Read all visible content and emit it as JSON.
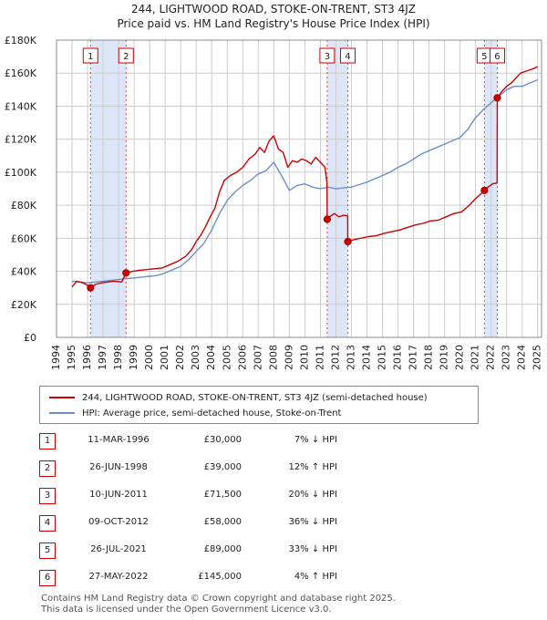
{
  "title_line1": "244, LIGHTWOOD ROAD, STOKE-ON-TRENT, ST3 4JZ",
  "title_line2": "Price paid vs. HM Land Registry's House Price Index (HPI)",
  "colors": {
    "price_line": "#cc0000",
    "hpi_line": "#6e8fc4",
    "shade": "#dde6f8",
    "grid": "#cccccc",
    "marker_box": "#cc0000"
  },
  "chart_data": {
    "type": "line",
    "xlabel": "",
    "ylabel": "",
    "xlim": [
      1994,
      2025.25
    ],
    "ylim": [
      0,
      180000
    ],
    "yticks": [
      0,
      20000,
      40000,
      60000,
      80000,
      100000,
      120000,
      140000,
      160000,
      180000
    ],
    "ytick_labels": [
      "£0",
      "£20K",
      "£40K",
      "£60K",
      "£80K",
      "£100K",
      "£120K",
      "£140K",
      "£160K",
      "£180K"
    ],
    "xticks": [
      "1994",
      "1995",
      "1996",
      "1997",
      "1998",
      "1999",
      "2000",
      "2001",
      "2002",
      "2003",
      "2004",
      "2005",
      "2006",
      "2007",
      "2008",
      "2009",
      "2010",
      "2011",
      "2012",
      "2013",
      "2014",
      "2015",
      "2016",
      "2017",
      "2018",
      "2019",
      "2020",
      "2021",
      "2022",
      "2023",
      "2024",
      "2025"
    ],
    "shaded_spans": [
      [
        1996.19,
        1998.48
      ],
      [
        2011.44,
        2012.77
      ],
      [
        2021.57,
        2022.4
      ]
    ],
    "legend_placement": "below",
    "series": [
      {
        "name": "244, LIGHTWOOD ROAD, STOKE-ON-TRENT, ST3 4JZ (semi-detached house)",
        "x": [
          1995.0,
          1995.3,
          1995.7,
          1996.0,
          1996.19,
          1996.5,
          1996.9,
          1997.3,
          1997.7,
          1998.2,
          1998.48,
          1998.9,
          1999.3,
          1999.8,
          2000.3,
          2000.8,
          2001.3,
          2001.8,
          2002.3,
          2002.7,
          2003.0,
          2003.3,
          2003.6,
          2003.9,
          2004.2,
          2004.5,
          2004.8,
          2005.2,
          2005.6,
          2006.0,
          2006.4,
          2006.8,
          2007.1,
          2007.4,
          2007.7,
          2008.0,
          2008.3,
          2008.6,
          2008.9,
          2009.2,
          2009.5,
          2009.8,
          2010.1,
          2010.4,
          2010.7,
          2011.0,
          2011.3,
          2011.43,
          2011.44,
          2011.6,
          2011.9,
          2012.2,
          2012.5,
          2012.76,
          2012.77,
          2013.1,
          2013.6,
          2014.1,
          2014.6,
          2015.1,
          2015.6,
          2016.1,
          2016.6,
          2017.1,
          2017.6,
          2018.1,
          2018.6,
          2019.1,
          2019.6,
          2020.1,
          2020.6,
          2021.0,
          2021.3,
          2021.57,
          2021.8,
          2022.1,
          2022.39,
          2022.4,
          2022.7,
          2023.0,
          2023.3,
          2023.6,
          2023.9,
          2024.2,
          2024.5,
          2024.8,
          2025.0
        ],
        "values": [
          30500,
          34000,
          33000,
          31500,
          30000,
          32000,
          33000,
          33500,
          34000,
          33500,
          39000,
          40000,
          40500,
          41000,
          41500,
          42000,
          44000,
          46000,
          49000,
          53000,
          58000,
          62000,
          67000,
          73000,
          78000,
          88000,
          95000,
          98000,
          100000,
          103000,
          108000,
          111000,
          115000,
          112000,
          119000,
          122000,
          114000,
          112000,
          103000,
          107000,
          106000,
          108000,
          107000,
          105000,
          109000,
          106000,
          103000,
          93000,
          71500,
          73000,
          75000,
          73000,
          74000,
          73500,
          58000,
          59000,
          60000,
          61000,
          61500,
          63000,
          64000,
          65000,
          66500,
          68000,
          69000,
          70500,
          71000,
          73000,
          75000,
          76000,
          80000,
          84000,
          86500,
          89000,
          91000,
          93000,
          93500,
          145000,
          149000,
          152000,
          154000,
          157000,
          160000,
          161000,
          162000,
          163000,
          164000
        ]
      },
      {
        "name": "HPI: Average price, semi-detached house, Stoke-on-Trent",
        "x": [
          1995.0,
          1995.5,
          1996.0,
          1996.5,
          1997.0,
          1997.5,
          1998.0,
          1998.5,
          1999.0,
          1999.5,
          2000.0,
          2000.5,
          2001.0,
          2001.5,
          2002.0,
          2002.5,
          2003.0,
          2003.5,
          2004.0,
          2004.5,
          2005.0,
          2005.5,
          2006.0,
          2006.5,
          2007.0,
          2007.5,
          2008.0,
          2008.5,
          2009.0,
          2009.5,
          2010.0,
          2010.5,
          2011.0,
          2011.5,
          2012.0,
          2012.5,
          2013.0,
          2013.5,
          2014.0,
          2014.5,
          2015.0,
          2015.5,
          2016.0,
          2016.5,
          2017.0,
          2017.5,
          2018.0,
          2018.5,
          2019.0,
          2019.5,
          2020.0,
          2020.5,
          2021.0,
          2021.5,
          2022.0,
          2022.5,
          2023.0,
          2023.5,
          2024.0,
          2024.5,
          2025.0
        ],
        "values": [
          34000,
          33500,
          33000,
          33500,
          34000,
          34500,
          35000,
          35500,
          36000,
          36500,
          37000,
          37500,
          39000,
          41000,
          43000,
          47000,
          52000,
          57000,
          65000,
          75000,
          83000,
          88000,
          92000,
          95000,
          99000,
          101000,
          106000,
          98000,
          89000,
          92000,
          93000,
          91000,
          90000,
          91000,
          90000,
          90500,
          91000,
          92500,
          94000,
          96000,
          98000,
          100000,
          103000,
          105000,
          108000,
          111000,
          113000,
          115000,
          117000,
          119000,
          121000,
          126000,
          133000,
          138000,
          142000,
          146000,
          150000,
          152000,
          152000,
          154000,
          156000
        ]
      }
    ],
    "markers": [
      {
        "label": "1",
        "x": 1996.19,
        "y": 30000
      },
      {
        "label": "2",
        "x": 1998.48,
        "y": 39000
      },
      {
        "label": "3",
        "x": 2011.44,
        "y": 71500
      },
      {
        "label": "4",
        "x": 2012.77,
        "y": 58000
      },
      {
        "label": "5",
        "x": 2021.57,
        "y": 89000
      },
      {
        "label": "6",
        "x": 2022.4,
        "y": 145000
      }
    ]
  },
  "transactions": [
    {
      "num": "1",
      "date": "11-MAR-1996",
      "price": "£30,000",
      "hpi": "7% ↓ HPI"
    },
    {
      "num": "2",
      "date": "26-JUN-1998",
      "price": "£39,000",
      "hpi": "12% ↑ HPI"
    },
    {
      "num": "3",
      "date": "10-JUN-2011",
      "price": "£71,500",
      "hpi": "20% ↓ HPI"
    },
    {
      "num": "4",
      "date": "09-OCT-2012",
      "price": "£58,000",
      "hpi": "36% ↓ HPI"
    },
    {
      "num": "5",
      "date": "26-JUL-2021",
      "price": "£89,000",
      "hpi": "33% ↓ HPI"
    },
    {
      "num": "6",
      "date": "27-MAY-2022",
      "price": "£145,000",
      "hpi": "4% ↑ HPI"
    }
  ],
  "footer_line1": "Contains HM Land Registry data © Crown copyright and database right 2025.",
  "footer_line2": "This data is licensed under the Open Government Licence v3.0."
}
